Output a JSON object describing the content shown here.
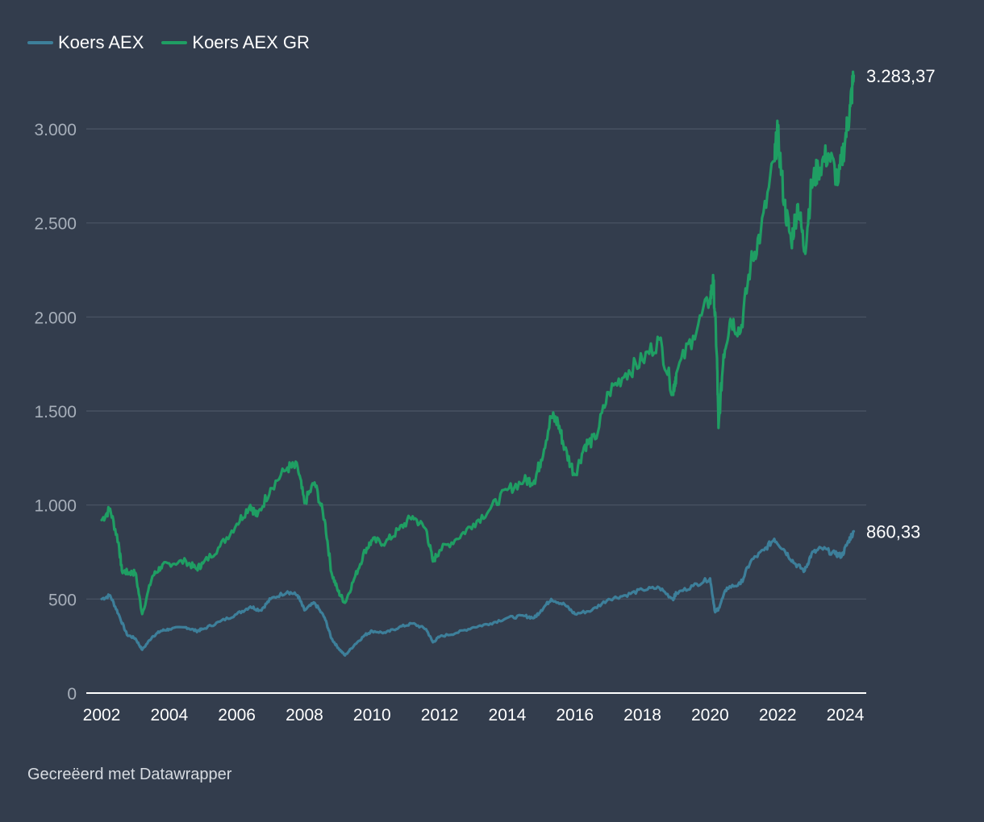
{
  "legend": [
    {
      "name": "Koers AEX",
      "color": "#3d7f9a"
    },
    {
      "name": "Koers AEX GR",
      "color": "#1f9e63"
    }
  ],
  "footer": "Gecreëerd met Datawrapper",
  "chart_data": {
    "type": "line",
    "title": "",
    "xlabel": "",
    "ylabel": "",
    "xlim": [
      2002,
      2024.3
    ],
    "ylim": [
      0,
      3300
    ],
    "y_ticks": [
      0,
      500,
      1000,
      1500,
      2000,
      2500,
      3000
    ],
    "y_tick_labels": [
      "0",
      "500",
      "1.000",
      "1.500",
      "2.000",
      "2.500",
      "3.000"
    ],
    "x_ticks": [
      2002,
      2004,
      2006,
      2008,
      2010,
      2012,
      2014,
      2016,
      2018,
      2020,
      2022,
      2024
    ],
    "x_tick_labels": [
      "2002",
      "2004",
      "2006",
      "2008",
      "2010",
      "2012",
      "2014",
      "2016",
      "2018",
      "2020",
      "2022",
      "2024"
    ],
    "gridlines": true,
    "legend_position": "top-left",
    "series": [
      {
        "name": "Koers AEX",
        "color": "#3d7f9a",
        "end_label": "860,33",
        "points": [
          [
            2002.0,
            500
          ],
          [
            2002.25,
            520
          ],
          [
            2002.5,
            420
          ],
          [
            2002.75,
            310
          ],
          [
            2003.0,
            290
          ],
          [
            2003.2,
            230
          ],
          [
            2003.5,
            300
          ],
          [
            2003.75,
            330
          ],
          [
            2004.0,
            340
          ],
          [
            2004.5,
            350
          ],
          [
            2004.8,
            330
          ],
          [
            2005.0,
            340
          ],
          [
            2005.5,
            380
          ],
          [
            2006.0,
            420
          ],
          [
            2006.4,
            460
          ],
          [
            2006.7,
            440
          ],
          [
            2007.0,
            500
          ],
          [
            2007.5,
            540
          ],
          [
            2007.8,
            520
          ],
          [
            2008.0,
            440
          ],
          [
            2008.3,
            480
          ],
          [
            2008.6,
            400
          ],
          [
            2008.8,
            290
          ],
          [
            2009.0,
            240
          ],
          [
            2009.2,
            200
          ],
          [
            2009.5,
            260
          ],
          [
            2009.8,
            310
          ],
          [
            2010.0,
            330
          ],
          [
            2010.4,
            320
          ],
          [
            2010.8,
            350
          ],
          [
            2011.2,
            370
          ],
          [
            2011.6,
            340
          ],
          [
            2011.8,
            270
          ],
          [
            2012.0,
            300
          ],
          [
            2012.5,
            320
          ],
          [
            2013.0,
            350
          ],
          [
            2013.5,
            370
          ],
          [
            2014.0,
            400
          ],
          [
            2014.5,
            410
          ],
          [
            2014.8,
            400
          ],
          [
            2015.0,
            440
          ],
          [
            2015.3,
            500
          ],
          [
            2015.7,
            470
          ],
          [
            2016.0,
            420
          ],
          [
            2016.5,
            440
          ],
          [
            2017.0,
            500
          ],
          [
            2017.5,
            520
          ],
          [
            2018.0,
            550
          ],
          [
            2018.5,
            560
          ],
          [
            2018.9,
            500
          ],
          [
            2019.0,
            530
          ],
          [
            2019.5,
            570
          ],
          [
            2020.0,
            610
          ],
          [
            2020.15,
            430
          ],
          [
            2020.25,
            450
          ],
          [
            2020.5,
            560
          ],
          [
            2020.9,
            580
          ],
          [
            2021.2,
            700
          ],
          [
            2021.6,
            760
          ],
          [
            2021.9,
            820
          ],
          [
            2022.2,
            760
          ],
          [
            2022.5,
            690
          ],
          [
            2022.8,
            650
          ],
          [
            2023.0,
            740
          ],
          [
            2023.3,
            770
          ],
          [
            2023.7,
            740
          ],
          [
            2023.9,
            730
          ],
          [
            2024.1,
            810
          ],
          [
            2024.25,
            860.33
          ]
        ]
      },
      {
        "name": "Koers AEX GR",
        "color": "#1f9e63",
        "end_label": "3.283,37",
        "points": [
          [
            2002.0,
            920
          ],
          [
            2002.25,
            980
          ],
          [
            2002.5,
            800
          ],
          [
            2002.6,
            650
          ],
          [
            2002.8,
            640
          ],
          [
            2003.0,
            640
          ],
          [
            2003.2,
            420
          ],
          [
            2003.5,
            620
          ],
          [
            2003.75,
            670
          ],
          [
            2004.0,
            690
          ],
          [
            2004.5,
            700
          ],
          [
            2004.8,
            660
          ],
          [
            2005.0,
            690
          ],
          [
            2005.5,
            780
          ],
          [
            2006.0,
            900
          ],
          [
            2006.4,
            1000
          ],
          [
            2006.6,
            940
          ],
          [
            2007.0,
            1090
          ],
          [
            2007.5,
            1200
          ],
          [
            2007.8,
            1200
          ],
          [
            2008.0,
            1010
          ],
          [
            2008.3,
            1120
          ],
          [
            2008.6,
            920
          ],
          [
            2008.8,
            640
          ],
          [
            2009.0,
            540
          ],
          [
            2009.2,
            480
          ],
          [
            2009.5,
            620
          ],
          [
            2009.8,
            760
          ],
          [
            2010.0,
            810
          ],
          [
            2010.4,
            800
          ],
          [
            2010.8,
            870
          ],
          [
            2011.2,
            940
          ],
          [
            2011.6,
            870
          ],
          [
            2011.8,
            700
          ],
          [
            2012.0,
            760
          ],
          [
            2012.5,
            820
          ],
          [
            2013.0,
            900
          ],
          [
            2013.5,
            980
          ],
          [
            2014.0,
            1080
          ],
          [
            2014.5,
            1130
          ],
          [
            2014.8,
            1130
          ],
          [
            2015.0,
            1240
          ],
          [
            2015.3,
            1470
          ],
          [
            2015.5,
            1440
          ],
          [
            2015.7,
            1300
          ],
          [
            2016.0,
            1160
          ],
          [
            2016.3,
            1320
          ],
          [
            2016.6,
            1350
          ],
          [
            2017.0,
            1600
          ],
          [
            2017.5,
            1700
          ],
          [
            2018.0,
            1770
          ],
          [
            2018.5,
            1880
          ],
          [
            2018.9,
            1600
          ],
          [
            2019.0,
            1700
          ],
          [
            2019.5,
            1900
          ],
          [
            2020.0,
            2100
          ],
          [
            2020.1,
            2180
          ],
          [
            2020.2,
            1800
          ],
          [
            2020.25,
            1410
          ],
          [
            2020.4,
            1800
          ],
          [
            2020.6,
            1990
          ],
          [
            2020.9,
            1920
          ],
          [
            2021.2,
            2280
          ],
          [
            2021.5,
            2450
          ],
          [
            2021.9,
            2830
          ],
          [
            2022.0,
            2980
          ],
          [
            2022.2,
            2600
          ],
          [
            2022.4,
            2400
          ],
          [
            2022.6,
            2600
          ],
          [
            2022.8,
            2350
          ],
          [
            2023.0,
            2700
          ],
          [
            2023.2,
            2790
          ],
          [
            2023.5,
            2870
          ],
          [
            2023.8,
            2720
          ],
          [
            2024.0,
            2950
          ],
          [
            2024.15,
            3120
          ],
          [
            2024.25,
            3283.37
          ]
        ]
      }
    ]
  }
}
